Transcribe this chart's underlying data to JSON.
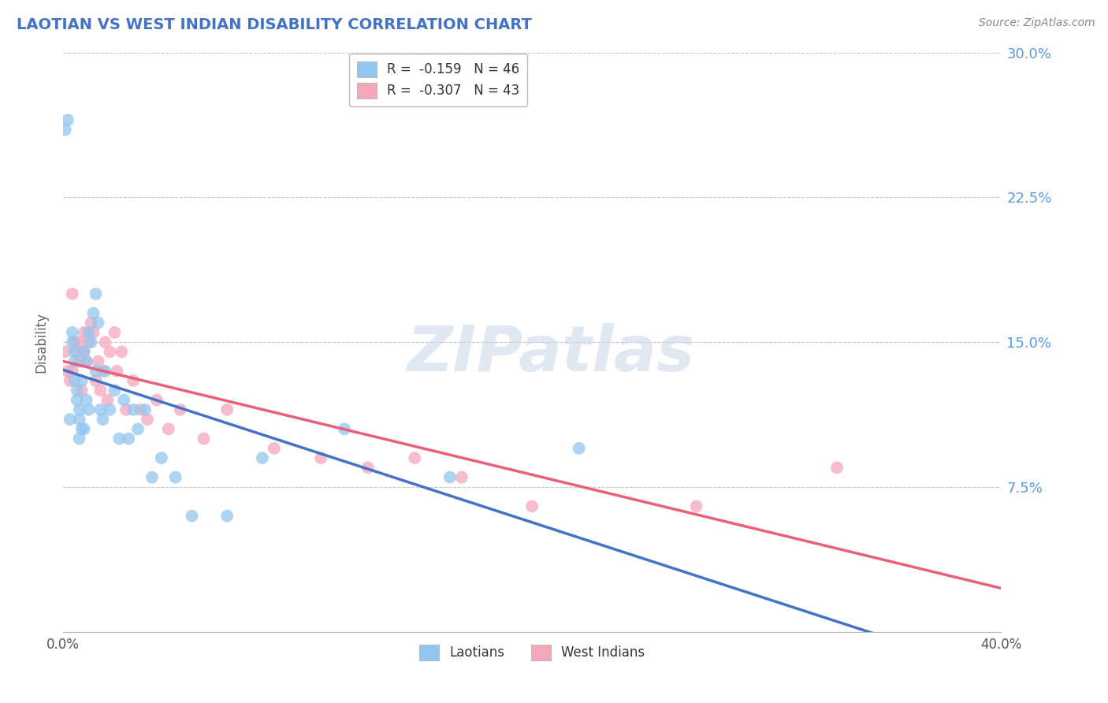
{
  "title": "LAOTIAN VS WEST INDIAN DISABILITY CORRELATION CHART",
  "source": "Source: ZipAtlas.com",
  "ylabel": "Disability",
  "xlim": [
    0.0,
    0.4
  ],
  "ylim": [
    0.0,
    0.3
  ],
  "xticklabels": [
    "0.0%",
    "40.0%"
  ],
  "ytick_positions": [
    0.075,
    0.15,
    0.225,
    0.3
  ],
  "ytick_labels": [
    "7.5%",
    "15.0%",
    "22.5%",
    "30.0%"
  ],
  "grid_color": "#c8c8c8",
  "background_color": "#ffffff",
  "laotian_color": "#93C6EE",
  "west_indian_color": "#F4A8BC",
  "laotian_line_color": "#4472C4",
  "west_indian_line_color": "#E8607A",
  "legend_label1": "R =  -0.159   N = 46",
  "legend_label2": "R =  -0.307   N = 43",
  "watermark": "ZIPatlas",
  "figsize": [
    14.06,
    8.92
  ],
  "dpi": 100,
  "laotian_x": [
    0.001,
    0.002,
    0.003,
    0.004,
    0.004,
    0.005,
    0.005,
    0.005,
    0.006,
    0.006,
    0.007,
    0.007,
    0.007,
    0.008,
    0.008,
    0.009,
    0.009,
    0.01,
    0.01,
    0.011,
    0.011,
    0.012,
    0.013,
    0.014,
    0.014,
    0.015,
    0.016,
    0.017,
    0.018,
    0.02,
    0.022,
    0.024,
    0.026,
    0.028,
    0.03,
    0.032,
    0.035,
    0.038,
    0.042,
    0.048,
    0.055,
    0.07,
    0.085,
    0.12,
    0.165,
    0.22
  ],
  "laotian_y": [
    0.26,
    0.265,
    0.11,
    0.15,
    0.155,
    0.13,
    0.14,
    0.145,
    0.12,
    0.125,
    0.1,
    0.11,
    0.115,
    0.105,
    0.13,
    0.145,
    0.105,
    0.14,
    0.12,
    0.115,
    0.155,
    0.15,
    0.165,
    0.175,
    0.135,
    0.16,
    0.115,
    0.11,
    0.135,
    0.115,
    0.125,
    0.1,
    0.12,
    0.1,
    0.115,
    0.105,
    0.115,
    0.08,
    0.09,
    0.08,
    0.06,
    0.06,
    0.09,
    0.105,
    0.08,
    0.095
  ],
  "west_indian_x": [
    0.001,
    0.002,
    0.003,
    0.004,
    0.004,
    0.005,
    0.006,
    0.007,
    0.007,
    0.008,
    0.009,
    0.009,
    0.01,
    0.011,
    0.012,
    0.013,
    0.014,
    0.015,
    0.016,
    0.017,
    0.018,
    0.019,
    0.02,
    0.022,
    0.023,
    0.025,
    0.027,
    0.03,
    0.033,
    0.036,
    0.04,
    0.045,
    0.05,
    0.06,
    0.07,
    0.09,
    0.11,
    0.13,
    0.15,
    0.17,
    0.2,
    0.27,
    0.33
  ],
  "west_indian_y": [
    0.145,
    0.135,
    0.13,
    0.135,
    0.175,
    0.15,
    0.145,
    0.14,
    0.15,
    0.125,
    0.155,
    0.145,
    0.14,
    0.15,
    0.16,
    0.155,
    0.13,
    0.14,
    0.125,
    0.135,
    0.15,
    0.12,
    0.145,
    0.155,
    0.135,
    0.145,
    0.115,
    0.13,
    0.115,
    0.11,
    0.12,
    0.105,
    0.115,
    0.1,
    0.115,
    0.095,
    0.09,
    0.085,
    0.09,
    0.08,
    0.065,
    0.065,
    0.085
  ]
}
